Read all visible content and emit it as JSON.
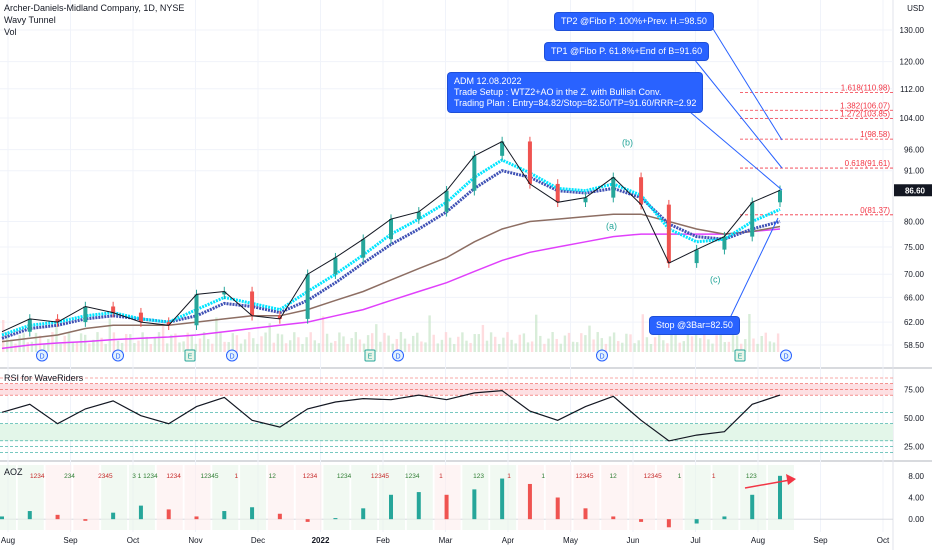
{
  "header": {
    "title": "Archer-Daniels-Midland Company, 1D, NYSE",
    "indicator1": "Wavy Tunnel",
    "indicator2": "Vol"
  },
  "currency": "USD",
  "last_price": "86.60",
  "callouts": {
    "tp2": "TP2 @Fibo P. 100%+Prev. H.=98.50",
    "tp1": "TP1 @Fibo P. 61.8%+End of B=91.60",
    "plan_line1": "ADM 12.08.2022",
    "plan_line2": "Trade Setup : WTZ2+AO in the Z. with Bullish Conv.",
    "plan_line3": "Trading Plan : Entry=84.82/Stop=82.50/TP=91.60/RRR=2.92",
    "stop": "Stop @3Bar=82.50"
  },
  "wave_labels": [
    "(a)",
    "(b)",
    "(c)"
  ],
  "fib_levels": [
    {
      "label": "1.618(110.98)",
      "value": 110.98
    },
    {
      "label": "1.382(106.07)",
      "value": 106.07
    },
    {
      "label": "1.272(103.85)",
      "value": 103.85
    },
    {
      "label": "1(98.58)",
      "value": 98.58
    },
    {
      "label": "0.618(91.61)",
      "value": 91.61
    },
    {
      "label": "0(81.37)",
      "value": 81.37
    }
  ],
  "event_markers": [
    "D",
    "D",
    "E",
    "D",
    "E",
    "D",
    "D",
    "E",
    "D"
  ],
  "panels": {
    "rsi_title": "RSI for WaveRiders",
    "aoz_title": "AOZ"
  },
  "chart_data": {
    "type": "line",
    "x": [
      "Aug",
      "Sep",
      "Oct",
      "Nov",
      "Dec",
      "2022",
      "Feb",
      "Mar",
      "Apr",
      "May",
      "Jun",
      "Jul",
      "Aug",
      "Sep",
      "Oct"
    ],
    "price_axis": {
      "ticks": [
        "130.00",
        "120.00",
        "112.00",
        "104.00",
        "96.00",
        "91.00",
        "86.60",
        "80.00",
        "75.00",
        "70.00",
        "66.00",
        "62.00",
        "58.50"
      ],
      "scale": "log"
    },
    "rsi_axis": {
      "ticks": [
        "75.00",
        "50.00",
        "25.00"
      ]
    },
    "aoz_axis": {
      "ticks": [
        "8.00",
        "4.00",
        "0.00"
      ]
    },
    "aoz_counts": [
      "1234",
      "234",
      "2345",
      "3 1 1234",
      "1234",
      "12345",
      "1",
      "12",
      "1234",
      "1234",
      "12345",
      "1234",
      "1",
      "123",
      "1",
      "1",
      "12345",
      "12",
      "12345",
      "1",
      "1",
      "123"
    ],
    "price_close": [
      60.5,
      62.5,
      62.0,
      64.5,
      63.5,
      62.0,
      61.5,
      66.5,
      67.0,
      63.0,
      62.5,
      70.0,
      73.0,
      76.5,
      80.5,
      82.0,
      86.5,
      94.5,
      98.0,
      88.0,
      84.0,
      85.0,
      89.5,
      83.5,
      72.0,
      74.5,
      77.0,
      84.0,
      86.6
    ],
    "ema_fast": [
      60.0,
      61.5,
      62.0,
      63.0,
      63.5,
      62.5,
      62.0,
      64.0,
      66.0,
      65.0,
      64.0,
      67.0,
      70.0,
      73.5,
      77.5,
      80.5,
      84.0,
      89.5,
      93.5,
      90.5,
      87.0,
      86.5,
      88.0,
      85.5,
      78.5,
      76.0,
      76.5,
      80.0,
      82.5
    ],
    "ema_mid": [
      59.5,
      61.0,
      61.5,
      62.5,
      63.0,
      62.5,
      62.0,
      63.0,
      65.0,
      64.5,
      63.5,
      65.5,
      68.5,
      72.0,
      75.5,
      78.5,
      82.0,
      87.0,
      91.0,
      89.5,
      86.5,
      86.0,
      87.0,
      85.0,
      79.5,
      77.0,
      76.5,
      78.5,
      80.0
    ],
    "sma_slow": [
      59.0,
      59.5,
      60.0,
      61.0,
      61.5,
      61.5,
      61.5,
      62.0,
      62.5,
      63.0,
      63.0,
      64.0,
      65.5,
      67.0,
      69.0,
      71.0,
      73.0,
      76.0,
      78.5,
      80.0,
      80.5,
      81.0,
      81.5,
      81.5,
      80.0,
      78.5,
      77.5,
      78.0,
      79.0
    ],
    "sma_long": [
      58.0,
      58.5,
      58.8,
      59.0,
      59.3,
      59.5,
      59.7,
      60.0,
      60.5,
      61.0,
      61.5,
      62.0,
      63.0,
      64.0,
      65.5,
      67.0,
      68.5,
      70.5,
      72.5,
      74.0,
      75.0,
      76.0,
      77.0,
      77.5,
      77.5,
      77.5,
      77.5,
      78.0,
      78.5
    ],
    "rsi": [
      55,
      62,
      45,
      58,
      65,
      52,
      45,
      60,
      68,
      48,
      42,
      58,
      64,
      67,
      66,
      70,
      66,
      72,
      74,
      56,
      48,
      60,
      69,
      48,
      30,
      35,
      38,
      62,
      70
    ],
    "aoz": [
      0.5,
      1.5,
      0.8,
      -0.3,
      1.2,
      2.5,
      1.8,
      0.5,
      1.5,
      2.2,
      1.0,
      -0.5,
      0.2,
      2.0,
      4.5,
      5.0,
      4.5,
      5.5,
      7.5,
      6.5,
      4.0,
      2.0,
      0.5,
      -0.5,
      -1.5,
      -0.8,
      0.5,
      4.5,
      8.0
    ]
  },
  "colors": {
    "up": "#26a69a",
    "down": "#ef5350",
    "tunnel_fast": "#00e5ff",
    "tunnel_mid": "#3f51b5",
    "slow_line": "#8d6e63",
    "long_line": "#e040fb",
    "fib": "#f23645",
    "callout": "#2962ff"
  }
}
